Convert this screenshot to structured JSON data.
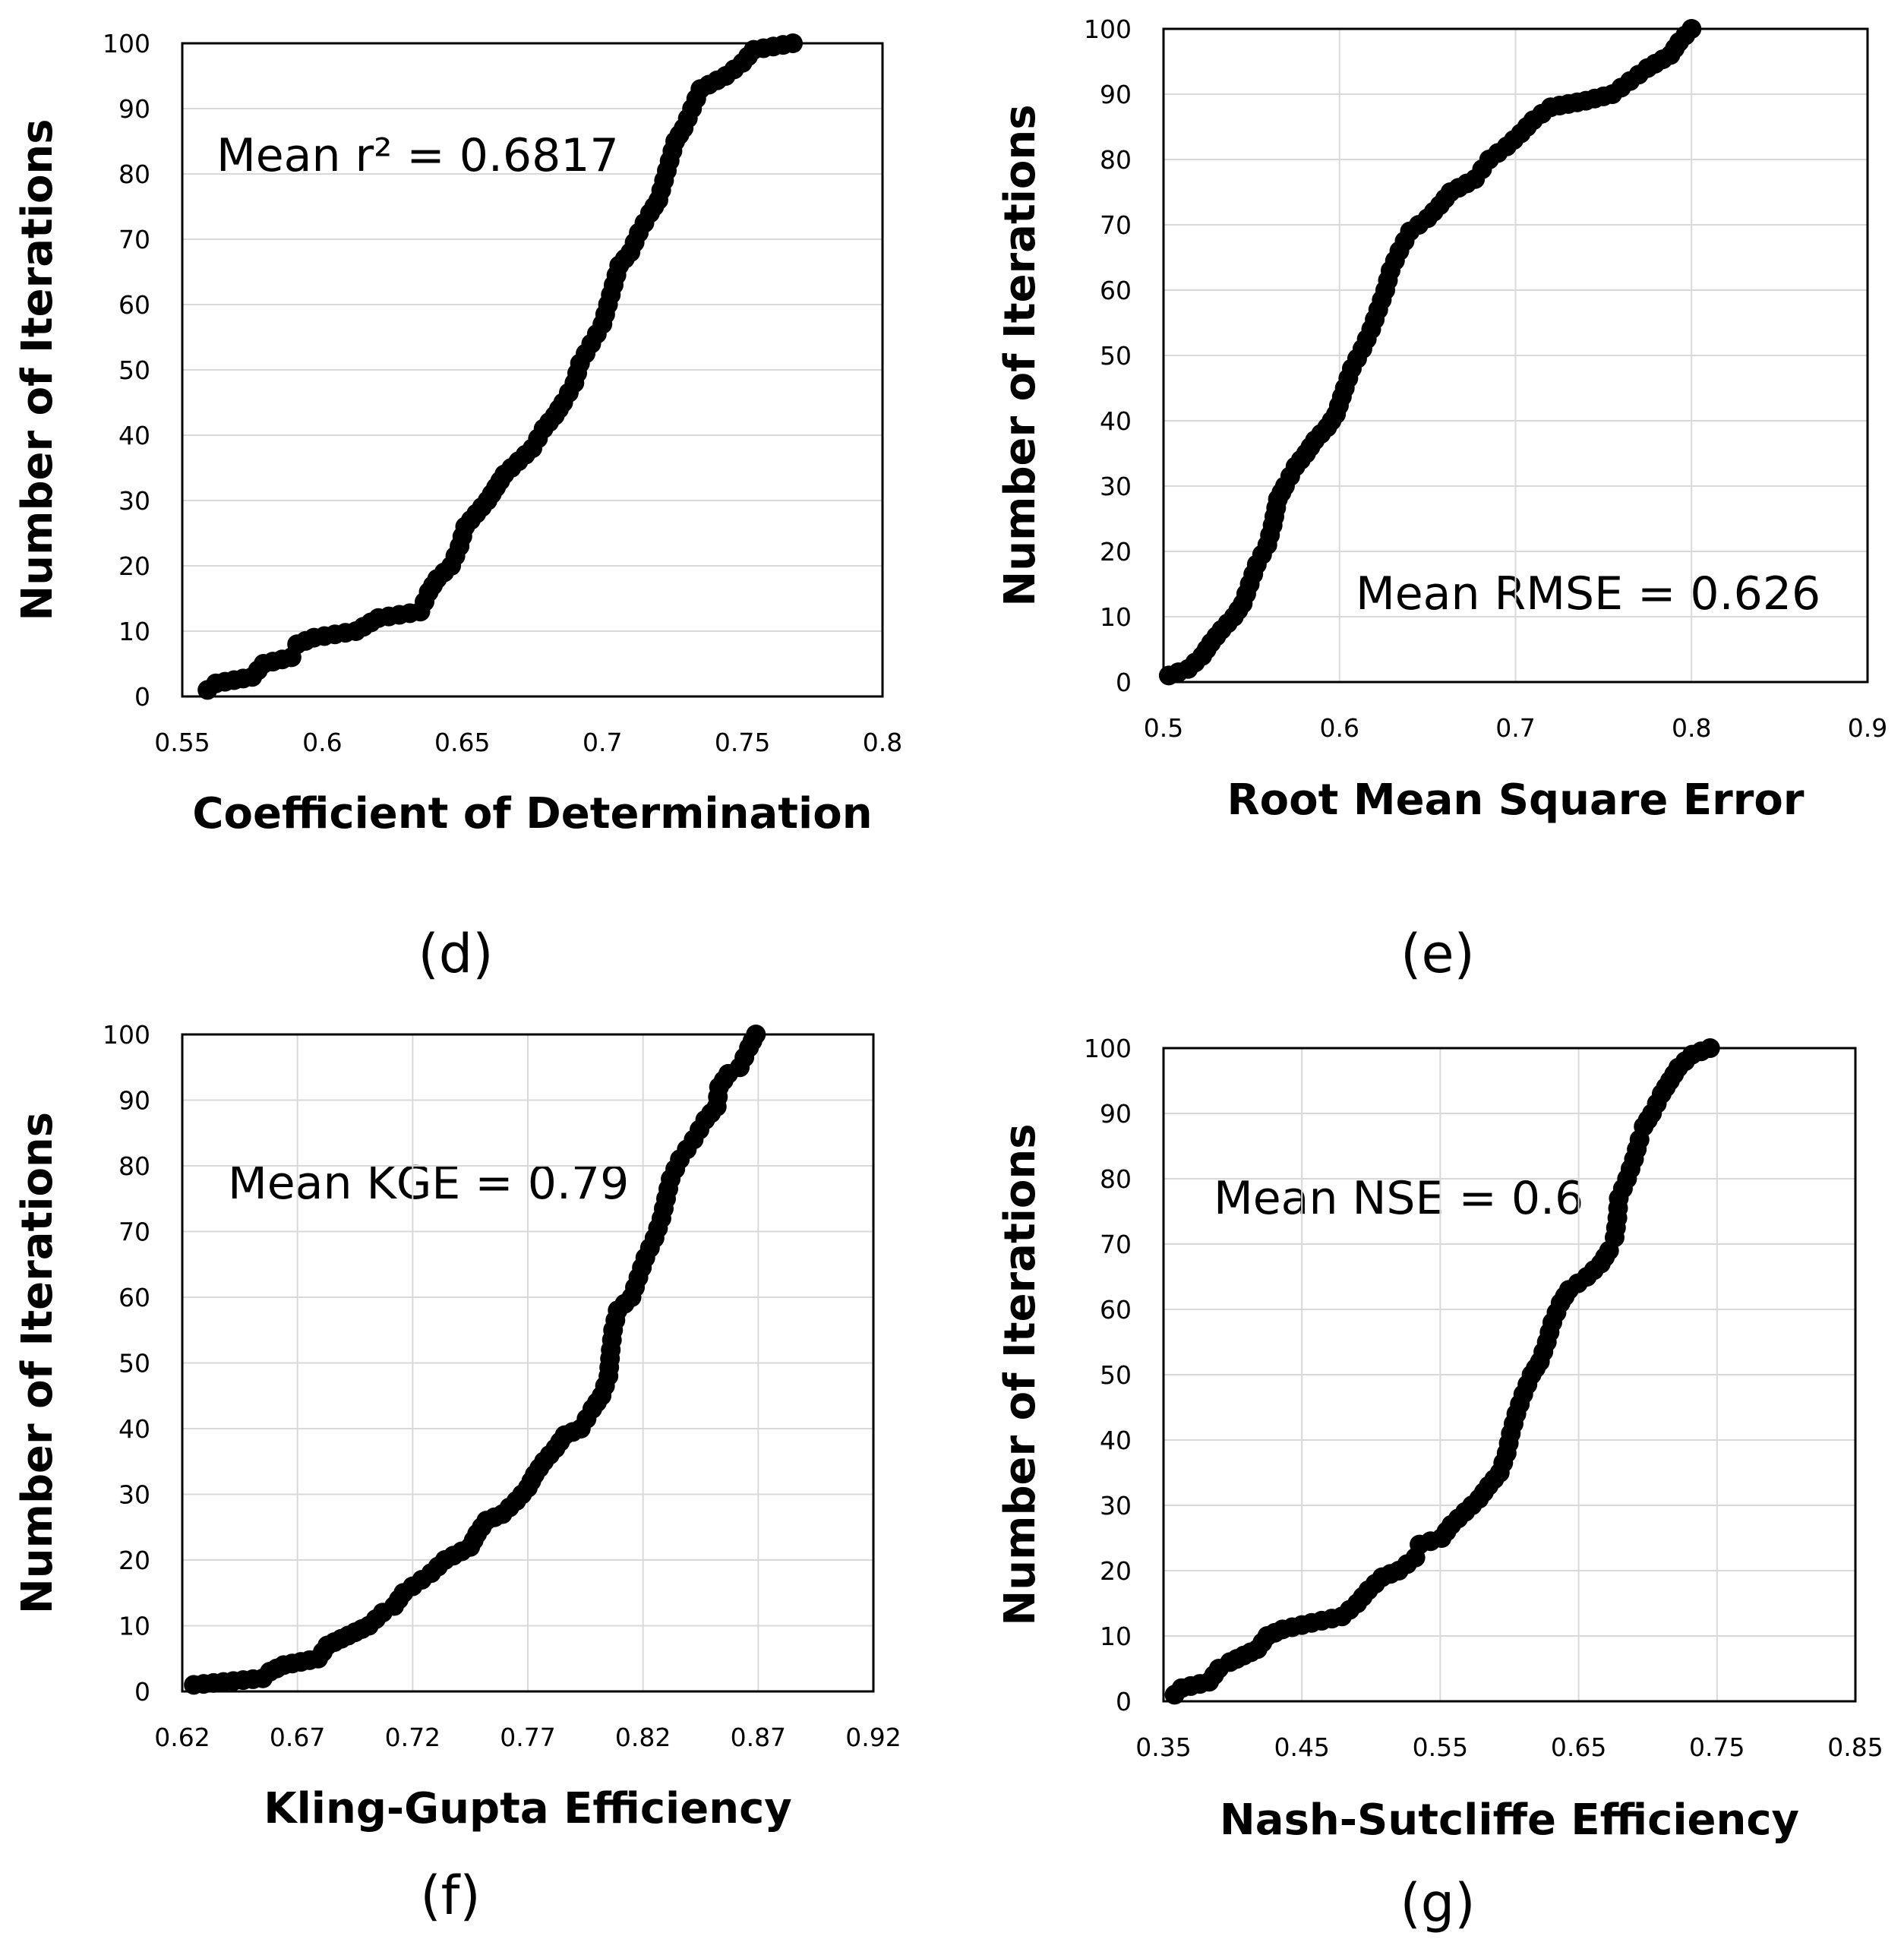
{
  "figure": {
    "panels": [
      {
        "caption": "(d)",
        "annotation": "Mean r² = 0.6817"
      },
      {
        "caption": "(e)",
        "annotation": "Mean RMSE = 0.626"
      },
      {
        "caption": "(f)",
        "annotation": "Mean KGE = 0.79"
      },
      {
        "caption": "(g)",
        "annotation": "Mean NSE = 0.6"
      }
    ]
  },
  "chart_data": [
    {
      "type": "scatter",
      "xlabel": "Coefficient of Determination",
      "ylabel": "Number of Iterations",
      "xlim": [
        0.55,
        0.8
      ],
      "ylim": [
        0,
        100
      ],
      "xticks": [
        "0.55",
        "0.6",
        "0.65",
        "0.7",
        "0.75",
        "0.8"
      ],
      "yticks": [
        "0",
        "10",
        "20",
        "30",
        "40",
        "50",
        "60",
        "70",
        "80",
        "90",
        "100"
      ],
      "grid": "horizontal",
      "series": [
        {
          "curve": [
            [
              0.559,
              1
            ],
            [
              0.562,
              2
            ],
            [
              0.575,
              3
            ],
            [
              0.579,
              5
            ],
            [
              0.589,
              6
            ],
            [
              0.591,
              8
            ],
            [
              0.597,
              9
            ],
            [
              0.612,
              10
            ],
            [
              0.62,
              12
            ],
            [
              0.635,
              13
            ],
            [
              0.638,
              16
            ],
            [
              0.641,
              18
            ],
            [
              0.646,
              20
            ],
            [
              0.649,
              23
            ],
            [
              0.651,
              26
            ],
            [
              0.655,
              28
            ],
            [
              0.659,
              30
            ],
            [
              0.662,
              32
            ],
            [
              0.665,
              34
            ],
            [
              0.67,
              36
            ],
            [
              0.675,
              38
            ],
            [
              0.679,
              41
            ],
            [
              0.683,
              43
            ],
            [
              0.686,
              45
            ],
            [
              0.69,
              48
            ],
            [
              0.692,
              51
            ],
            [
              0.696,
              54
            ],
            [
              0.7,
              57
            ],
            [
              0.702,
              60
            ],
            [
              0.704,
              63
            ],
            [
              0.706,
              66
            ],
            [
              0.71,
              68
            ],
            [
              0.713,
              71
            ],
            [
              0.717,
              74
            ],
            [
              0.72,
              76
            ],
            [
              0.722,
              79
            ],
            [
              0.724,
              82
            ],
            [
              0.726,
              85
            ],
            [
              0.729,
              87
            ],
            [
              0.732,
              90
            ],
            [
              0.735,
              93
            ],
            [
              0.744,
              95
            ],
            [
              0.75,
              97
            ],
            [
              0.754,
              99
            ],
            [
              0.768,
              100
            ]
          ]
        }
      ]
    },
    {
      "type": "scatter",
      "xlabel": "Root Mean Square Error",
      "ylabel": "Number of Iterations",
      "xlim": [
        0.5,
        0.9
      ],
      "ylim": [
        0,
        100
      ],
      "xticks": [
        "0.5",
        "0.6",
        "0.7",
        "0.8",
        "0.9"
      ],
      "yticks": [
        "0",
        "10",
        "20",
        "30",
        "40",
        "50",
        "60",
        "70",
        "80",
        "90",
        "100"
      ],
      "grid": "both",
      "series": [
        {
          "curve": [
            [
              0.503,
              1
            ],
            [
              0.514,
              2
            ],
            [
              0.522,
              4
            ],
            [
              0.527,
              6
            ],
            [
              0.533,
              8
            ],
            [
              0.54,
              10
            ],
            [
              0.545,
              12
            ],
            [
              0.549,
              15
            ],
            [
              0.553,
              18
            ],
            [
              0.559,
              21
            ],
            [
              0.562,
              24
            ],
            [
              0.565,
              28
            ],
            [
              0.569,
              30
            ],
            [
              0.575,
              33
            ],
            [
              0.581,
              35
            ],
            [
              0.586,
              37
            ],
            [
              0.593,
              39
            ],
            [
              0.598,
              41
            ],
            [
              0.603,
              45
            ],
            [
              0.607,
              48
            ],
            [
              0.613,
              51
            ],
            [
              0.618,
              54
            ],
            [
              0.622,
              57
            ],
            [
              0.626,
              60
            ],
            [
              0.629,
              63
            ],
            [
              0.634,
              66
            ],
            [
              0.64,
              69
            ],
            [
              0.65,
              71
            ],
            [
              0.657,
              73
            ],
            [
              0.663,
              75
            ],
            [
              0.677,
              77
            ],
            [
              0.685,
              80
            ],
            [
              0.695,
              82
            ],
            [
              0.703,
              84
            ],
            [
              0.71,
              86
            ],
            [
              0.72,
              88
            ],
            [
              0.74,
              89
            ],
            [
              0.755,
              90
            ],
            [
              0.765,
              92
            ],
            [
              0.775,
              94
            ],
            [
              0.788,
              96
            ],
            [
              0.793,
              98
            ],
            [
              0.8,
              100
            ]
          ]
        }
      ]
    },
    {
      "type": "scatter",
      "xlabel": "Kling-Gupta  Efficiency",
      "ylabel": "Number of Iterations",
      "xlim": [
        0.62,
        0.92
      ],
      "ylim": [
        0,
        100
      ],
      "xticks": [
        "0.62",
        "0.67",
        "0.72",
        "0.77",
        "0.82",
        "0.87",
        "0.92"
      ],
      "yticks": [
        "0",
        "10",
        "20",
        "30",
        "40",
        "50",
        "60",
        "70",
        "80",
        "90",
        "100"
      ],
      "grid": "both",
      "series": [
        {
          "curve": [
            [
              0.625,
              1
            ],
            [
              0.655,
              2
            ],
            [
              0.658,
              3
            ],
            [
              0.664,
              4
            ],
            [
              0.679,
              5
            ],
            [
              0.683,
              7
            ],
            [
              0.689,
              8
            ],
            [
              0.695,
              9
            ],
            [
              0.701,
              10
            ],
            [
              0.707,
              12
            ],
            [
              0.712,
              13
            ],
            [
              0.716,
              15
            ],
            [
              0.72,
              16
            ],
            [
              0.728,
              18
            ],
            [
              0.734,
              20
            ],
            [
              0.745,
              22
            ],
            [
              0.748,
              24
            ],
            [
              0.752,
              26
            ],
            [
              0.759,
              27
            ],
            [
              0.765,
              29
            ],
            [
              0.77,
              31
            ],
            [
              0.773,
              33
            ],
            [
              0.777,
              35
            ],
            [
              0.782,
              37
            ],
            [
              0.786,
              39
            ],
            [
              0.793,
              40
            ],
            [
              0.798,
              43
            ],
            [
              0.802,
              45
            ],
            [
              0.805,
              48
            ],
            [
              0.806,
              52
            ],
            [
              0.807,
              55
            ],
            [
              0.809,
              58
            ],
            [
              0.815,
              60
            ],
            [
              0.818,
              63
            ],
            [
              0.821,
              66
            ],
            [
              0.825,
              69
            ],
            [
              0.828,
              72
            ],
            [
              0.83,
              75
            ],
            [
              0.832,
              78
            ],
            [
              0.836,
              81
            ],
            [
              0.842,
              84
            ],
            [
              0.847,
              87
            ],
            [
              0.852,
              89
            ],
            [
              0.853,
              92
            ],
            [
              0.857,
              94
            ],
            [
              0.862,
              95
            ],
            [
              0.866,
              98
            ],
            [
              0.869,
              100
            ]
          ]
        }
      ]
    },
    {
      "type": "scatter",
      "xlabel": "Nash-Sutcliffe Efficiency",
      "ylabel": "Number of Iterations",
      "xlim": [
        0.35,
        0.85
      ],
      "ylim": [
        0,
        100
      ],
      "xticks": [
        "0.35",
        "0.45",
        "0.55",
        "0.65",
        "0.75",
        "0.85"
      ],
      "yticks": [
        "0",
        "10",
        "20",
        "30",
        "40",
        "50",
        "60",
        "70",
        "80",
        "90",
        "100"
      ],
      "grid": "both",
      "series": [
        {
          "curve": [
            [
              0.358,
              1
            ],
            [
              0.363,
              2
            ],
            [
              0.383,
              3
            ],
            [
              0.39,
              5
            ],
            [
              0.398,
              6
            ],
            [
              0.408,
              7
            ],
            [
              0.418,
              8
            ],
            [
              0.425,
              10
            ],
            [
              0.436,
              11
            ],
            [
              0.457,
              12
            ],
            [
              0.479,
              13
            ],
            [
              0.49,
              15
            ],
            [
              0.498,
              17
            ],
            [
              0.508,
              19
            ],
            [
              0.52,
              20
            ],
            [
              0.532,
              22
            ],
            [
              0.535,
              24
            ],
            [
              0.551,
              25
            ],
            [
              0.558,
              27
            ],
            [
              0.568,
              29
            ],
            [
              0.578,
              31
            ],
            [
              0.585,
              33
            ],
            [
              0.593,
              35
            ],
            [
              0.598,
              38
            ],
            [
              0.601,
              41
            ],
            [
              0.605,
              44
            ],
            [
              0.61,
              47
            ],
            [
              0.616,
              50
            ],
            [
              0.622,
              52
            ],
            [
              0.627,
              55
            ],
            [
              0.631,
              58
            ],
            [
              0.637,
              61
            ],
            [
              0.643,
              63
            ],
            [
              0.656,
              65
            ],
            [
              0.666,
              67
            ],
            [
              0.672,
              69
            ],
            [
              0.676,
              71
            ],
            [
              0.678,
              74
            ],
            [
              0.679,
              77
            ],
            [
              0.685,
              80
            ],
            [
              0.69,
              83
            ],
            [
              0.694,
              86
            ],
            [
              0.697,
              88
            ],
            [
              0.703,
              90
            ],
            [
              0.71,
              93
            ],
            [
              0.716,
              95
            ],
            [
              0.722,
              97
            ],
            [
              0.732,
              99
            ],
            [
              0.745,
              100
            ]
          ]
        }
      ]
    }
  ]
}
